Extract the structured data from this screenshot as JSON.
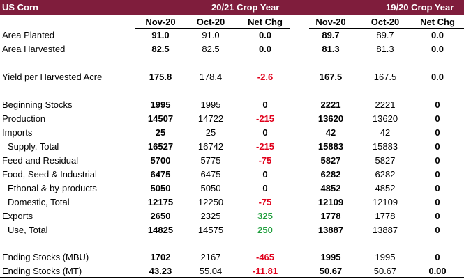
{
  "header": {
    "title": "US Corn",
    "year_cur": "20/21 Crop Year",
    "year_prev": "19/20 Crop Year"
  },
  "columns": {
    "cur": [
      "Nov-20",
      "Oct-20",
      "Net Chg"
    ],
    "prev": [
      "Nov-20",
      "Oct-20",
      "Net Chg"
    ]
  },
  "colors": {
    "header_bg": "#7f1d3c",
    "negative": "#e0001b",
    "positive": "#1f9e3c"
  },
  "rows": [
    {
      "label": "Area Planted",
      "v": [
        "91.0",
        "91.0",
        "0.0",
        "89.7",
        "89.7",
        "0.0"
      ]
    },
    {
      "label": "Area Harvested",
      "v": [
        "82.5",
        "82.5",
        "0.0",
        "81.3",
        "81.3",
        "0.0"
      ]
    },
    {
      "label": "Yield per Harvested Acre",
      "v": [
        "175.8",
        "178.4",
        "-2.6",
        "167.5",
        "167.5",
        "0.0"
      ]
    },
    {
      "label": "Beginning Stocks",
      "v": [
        "1995",
        "1995",
        "0",
        "2221",
        "2221",
        "0"
      ]
    },
    {
      "label": "Production",
      "v": [
        "14507",
        "14722",
        "-215",
        "13620",
        "13620",
        "0"
      ]
    },
    {
      "label": "Imports",
      "v": [
        "25",
        "25",
        "0",
        "42",
        "42",
        "0"
      ]
    },
    {
      "label": "Supply, Total",
      "v": [
        "16527",
        "16742",
        "-215",
        "15883",
        "15883",
        "0"
      ]
    },
    {
      "label": "Feed and Residual",
      "v": [
        "5700",
        "5775",
        "-75",
        "5827",
        "5827",
        "0"
      ]
    },
    {
      "label": "Food, Seed & Industrial",
      "v": [
        "6475",
        "6475",
        "0",
        "6282",
        "6282",
        "0"
      ]
    },
    {
      "label": "Ethonal & by-products",
      "v": [
        "5050",
        "5050",
        "0",
        "4852",
        "4852",
        "0"
      ]
    },
    {
      "label": "Domestic, Total",
      "v": [
        "12175",
        "12250",
        "-75",
        "12109",
        "12109",
        "0"
      ]
    },
    {
      "label": "Exports",
      "v": [
        "2650",
        "2325",
        "325",
        "1778",
        "1778",
        "0"
      ]
    },
    {
      "label": "Use, Total",
      "v": [
        "14825",
        "14575",
        "250",
        "13887",
        "13887",
        "0"
      ]
    },
    {
      "label": "Ending Stocks (MBU)",
      "v": [
        "1702",
        "2167",
        "-465",
        "1995",
        "1995",
        "0"
      ]
    },
    {
      "label": "Ending Stocks (MT)",
      "v": [
        "43.23",
        "55.04",
        "-11.81",
        "50.67",
        "50.67",
        "0.00"
      ]
    }
  ]
}
